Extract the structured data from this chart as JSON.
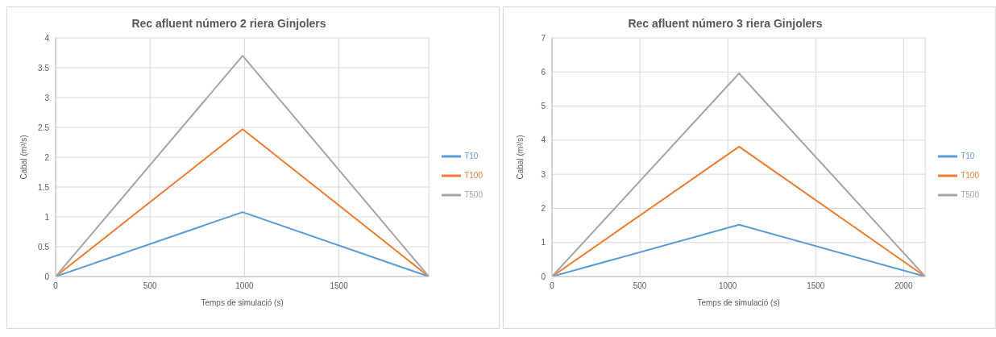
{
  "chart_data": [
    {
      "type": "line",
      "title": "Rec afluent número 2 riera Ginjolers",
      "xlabel": "Temps de simulació (s)",
      "ylabel": "Cabal (m³/s)",
      "x": [
        0,
        990,
        1976
      ],
      "series": [
        {
          "name": "T10",
          "color": "#5b9bd5",
          "values": [
            0,
            1.08,
            0
          ]
        },
        {
          "name": "T100",
          "color": "#ed7d31",
          "values": [
            0,
            2.47,
            0
          ]
        },
        {
          "name": "T500",
          "color": "#a5a5a5",
          "values": [
            0,
            3.7,
            0
          ]
        }
      ],
      "xlim": [
        0,
        1976
      ],
      "xticks": [
        0,
        500,
        1000,
        1500
      ],
      "ylim": [
        0,
        4
      ],
      "yticks": [
        0,
        0.5,
        1,
        1.5,
        2,
        2.5,
        3,
        3.5,
        4
      ],
      "grid": true,
      "legend": "right",
      "marker": "none",
      "line_style": "solid"
    },
    {
      "type": "line",
      "title": "Rec afluent número 3 riera Ginjolers",
      "xlabel": "Temps de simulació (s)",
      "ylabel": "Cabal (m³/s)",
      "x": [
        0,
        1064,
        2123
      ],
      "series": [
        {
          "name": "T10",
          "color": "#5b9bd5",
          "values": [
            0,
            1.52,
            0
          ]
        },
        {
          "name": "T100",
          "color": "#ed7d31",
          "values": [
            0,
            3.81,
            0
          ]
        },
        {
          "name": "T500",
          "color": "#a5a5a5",
          "values": [
            0,
            5.96,
            0
          ]
        }
      ],
      "xlim": [
        0,
        2123
      ],
      "xticks": [
        0,
        500,
        1000,
        1500,
        2000
      ],
      "ylim": [
        0,
        7
      ],
      "yticks": [
        0,
        1,
        2,
        3,
        4,
        5,
        6,
        7
      ],
      "grid": true,
      "legend": "right",
      "marker": "none",
      "line_style": "solid"
    }
  ]
}
